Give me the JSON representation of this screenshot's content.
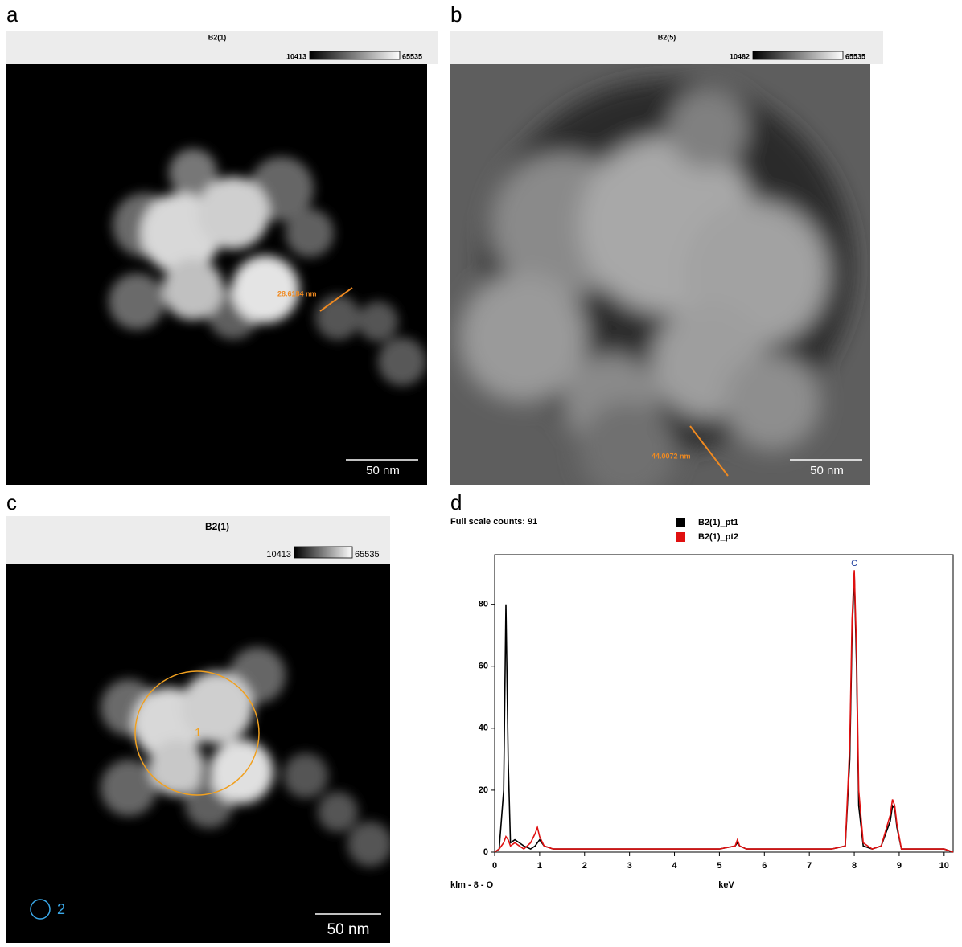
{
  "panels": [
    {
      "letter": "a",
      "title": "B2(1)",
      "colorbar": {
        "min": 10413,
        "max": 65535
      },
      "scale_bar": "50 nm",
      "measurement": "28.6184 nm"
    },
    {
      "letter": "b",
      "title": "B2(5)",
      "colorbar": {
        "min": 10482,
        "max": 65535
      },
      "scale_bar": "50 nm",
      "measurement": "44.0072 nm"
    },
    {
      "letter": "c",
      "title": "B2(1)",
      "colorbar": {
        "min": 10413,
        "max": 65535
      },
      "scale_bar": "50 nm",
      "region_labels": [
        "1",
        "2"
      ]
    }
  ],
  "chart_data": {
    "type": "line",
    "letter": "d",
    "subtitle": "Full scale counts: 91",
    "x_label": "keV",
    "footer": "klm - 8 - O",
    "peak_label": "C",
    "x": [
      0,
      0.1,
      0.2,
      0.25,
      0.3,
      0.35,
      0.45,
      0.55,
      0.65,
      0.8,
      0.9,
      0.95,
      1.0,
      1.1,
      1.3,
      1.6,
      2.0,
      2.5,
      3.0,
      3.5,
      4.0,
      4.5,
      5.0,
      5.35,
      5.4,
      5.45,
      5.6,
      6.0,
      6.5,
      7.0,
      7.5,
      7.8,
      7.9,
      7.95,
      8.0,
      8.05,
      8.1,
      8.2,
      8.4,
      8.6,
      8.8,
      8.85,
      8.9,
      8.95,
      9.05,
      9.2,
      9.5,
      10.0,
      10.2
    ],
    "series": [
      {
        "name": "B2(1)_pt1",
        "color": "#000000",
        "values": [
          0,
          1,
          20,
          80,
          30,
          3,
          4,
          3,
          2,
          1,
          2,
          3,
          4,
          2,
          1,
          1,
          1,
          1,
          1,
          1,
          1,
          1,
          1,
          2,
          3,
          2,
          1,
          1,
          1,
          1,
          1,
          2,
          30,
          70,
          90,
          60,
          15,
          2,
          1,
          2,
          10,
          15,
          14,
          8,
          1,
          1,
          1,
          1,
          0
        ]
      },
      {
        "name": "B2(1)_pt2",
        "color": "#e01010",
        "values": [
          0,
          1,
          3,
          5,
          4,
          2,
          3,
          2,
          1,
          3,
          6,
          8,
          5,
          2,
          1,
          1,
          1,
          1,
          1,
          1,
          1,
          1,
          1,
          2,
          4,
          2,
          1,
          1,
          1,
          1,
          1,
          2,
          35,
          75,
          91,
          65,
          20,
          3,
          1,
          2,
          12,
          17,
          15,
          9,
          1,
          1,
          1,
          1,
          0
        ]
      }
    ],
    "xlim": [
      0,
      10.2
    ],
    "ylim": [
      0,
      96
    ],
    "xticks": [
      0,
      1,
      2,
      3,
      4,
      5,
      6,
      7,
      8,
      9,
      10
    ],
    "yticks": [
      0,
      20,
      40,
      60,
      80
    ]
  }
}
